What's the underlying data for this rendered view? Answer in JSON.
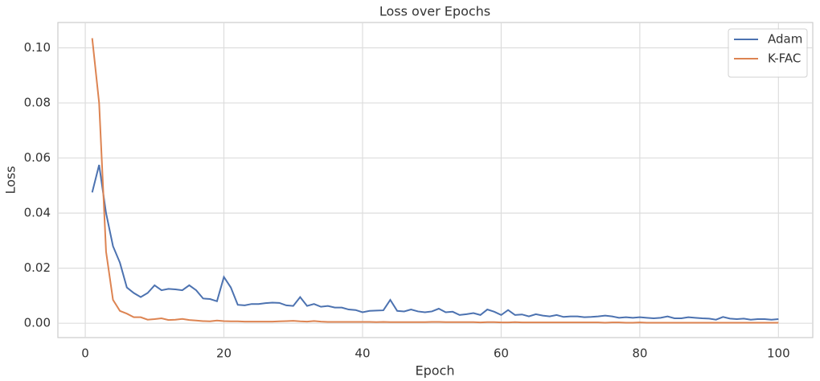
{
  "chart_data": {
    "type": "line",
    "title": "Loss over Epochs",
    "x_label": "Epoch",
    "y_label": "Loss",
    "x": [
      1,
      2,
      3,
      4,
      5,
      6,
      7,
      8,
      9,
      10,
      11,
      12,
      13,
      14,
      15,
      16,
      17,
      18,
      19,
      20,
      21,
      22,
      23,
      24,
      25,
      26,
      27,
      28,
      29,
      30,
      31,
      32,
      33,
      34,
      35,
      36,
      37,
      38,
      39,
      40,
      41,
      42,
      43,
      44,
      45,
      46,
      47,
      48,
      49,
      50,
      51,
      52,
      53,
      54,
      55,
      56,
      57,
      58,
      59,
      60,
      61,
      62,
      63,
      64,
      65,
      66,
      67,
      68,
      69,
      70,
      71,
      72,
      73,
      74,
      75,
      76,
      77,
      78,
      79,
      80,
      81,
      82,
      83,
      84,
      85,
      86,
      87,
      88,
      89,
      90,
      91,
      92,
      93,
      94,
      95,
      96,
      97,
      98,
      99,
      100
    ],
    "series": [
      {
        "name": "Adam",
        "color": "#4c72b0",
        "values": [
          0.0475,
          0.0575,
          0.04,
          0.028,
          0.022,
          0.013,
          0.011,
          0.0095,
          0.011,
          0.0138,
          0.012,
          0.0125,
          0.0123,
          0.012,
          0.0138,
          0.012,
          0.009,
          0.0088,
          0.008,
          0.0168,
          0.013,
          0.0067,
          0.0065,
          0.007,
          0.007,
          0.0073,
          0.0075,
          0.0074,
          0.0065,
          0.0063,
          0.0095,
          0.0063,
          0.007,
          0.006,
          0.0063,
          0.0057,
          0.0057,
          0.005,
          0.0048,
          0.004,
          0.0045,
          0.0046,
          0.0047,
          0.0085,
          0.0045,
          0.0043,
          0.005,
          0.0043,
          0.004,
          0.0043,
          0.0053,
          0.004,
          0.0042,
          0.003,
          0.0033,
          0.0037,
          0.003,
          0.005,
          0.0042,
          0.003,
          0.0048,
          0.003,
          0.0032,
          0.0025,
          0.0033,
          0.0028,
          0.0025,
          0.003,
          0.0023,
          0.0025,
          0.0025,
          0.0022,
          0.0023,
          0.0025,
          0.0028,
          0.0025,
          0.002,
          0.0022,
          0.002,
          0.0022,
          0.002,
          0.0018,
          0.002,
          0.0025,
          0.0018,
          0.0018,
          0.0022,
          0.002,
          0.0018,
          0.0017,
          0.0013,
          0.0023,
          0.0017,
          0.0015,
          0.0017,
          0.0013,
          0.0015,
          0.0015,
          0.0013,
          0.0015
        ]
      },
      {
        "name": "K-FAC",
        "color": "#dd8452",
        "values": [
          0.1035,
          0.08,
          0.026,
          0.0085,
          0.0045,
          0.0035,
          0.0022,
          0.0022,
          0.0013,
          0.0015,
          0.0018,
          0.0012,
          0.0013,
          0.0016,
          0.0012,
          0.001,
          0.0008,
          0.0007,
          0.001,
          0.0008,
          0.0007,
          0.0007,
          0.0006,
          0.0006,
          0.0006,
          0.0006,
          0.0006,
          0.0007,
          0.0008,
          0.0009,
          0.0007,
          0.0006,
          0.0008,
          0.0006,
          0.0005,
          0.0005,
          0.0005,
          0.0005,
          0.0005,
          0.0005,
          0.0005,
          0.0004,
          0.0005,
          0.0004,
          0.0004,
          0.0004,
          0.0004,
          0.0004,
          0.0004,
          0.0005,
          0.0005,
          0.0004,
          0.0004,
          0.0004,
          0.0004,
          0.0004,
          0.0003,
          0.0004,
          0.0004,
          0.0003,
          0.0003,
          0.0004,
          0.0003,
          0.0003,
          0.0003,
          0.0003,
          0.0003,
          0.0003,
          0.0003,
          0.0003,
          0.0003,
          0.0003,
          0.0003,
          0.0003,
          0.0002,
          0.0003,
          0.0003,
          0.0002,
          0.0002,
          0.0003,
          0.0002,
          0.0002,
          0.0002,
          0.0002,
          0.0002,
          0.0002,
          0.0002,
          0.0002,
          0.0002,
          0.0002,
          0.0002,
          0.0002,
          0.0002,
          0.0002,
          0.0002,
          0.0002,
          0.0002,
          0.0002,
          0.0002,
          0.0002
        ]
      }
    ],
    "xlim": [
      -3.95,
      104.95
    ],
    "ylim": [
      -0.0052,
      0.1092
    ],
    "xticks": [
      0,
      20,
      40,
      60,
      80,
      100
    ],
    "yticks": [
      {
        "value": 0,
        "label": "0.00"
      },
      {
        "value": 0.02,
        "label": "0.02"
      },
      {
        "value": 0.04,
        "label": "0.04"
      },
      {
        "value": 0.06,
        "label": "0.06"
      },
      {
        "value": 0.08,
        "label": "0.08"
      },
      {
        "value": 0.1,
        "label": "0.10"
      }
    ],
    "grid": true,
    "legend": "upper right"
  }
}
